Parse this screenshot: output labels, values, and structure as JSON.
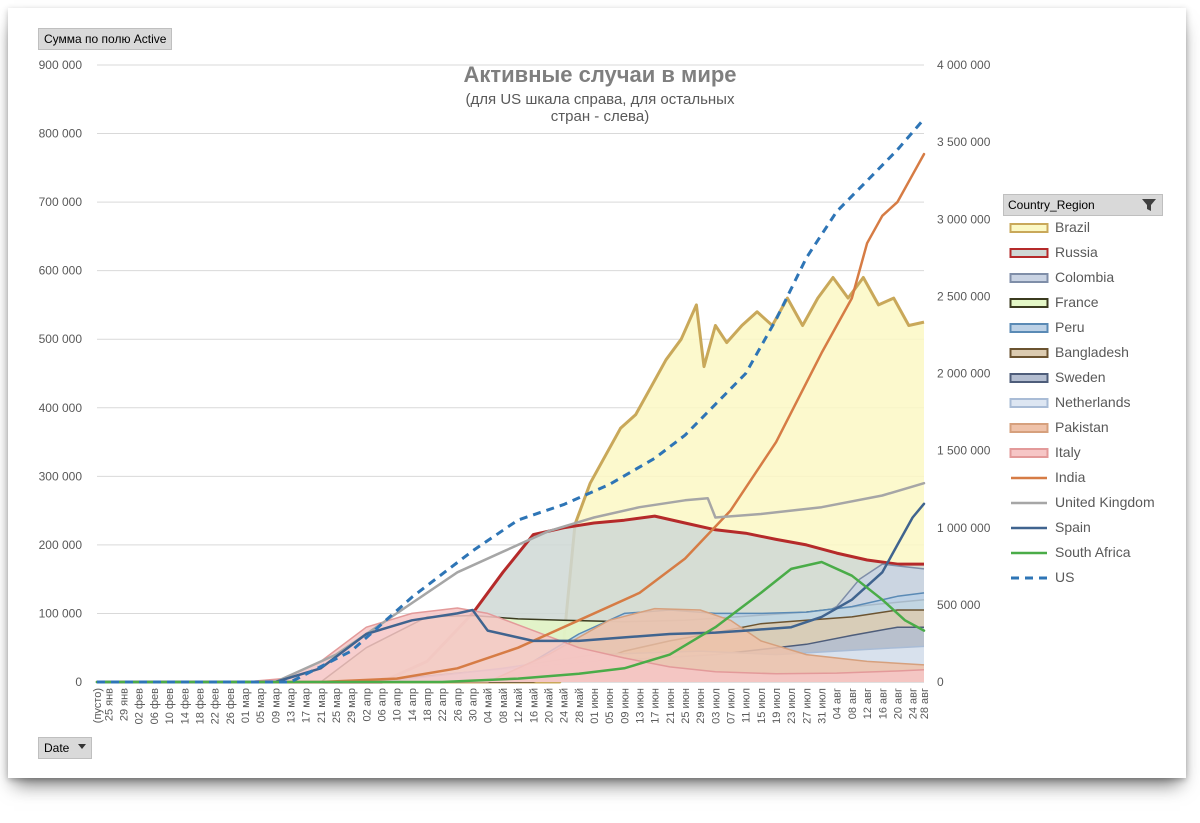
{
  "pivot": {
    "value_field": "Сумма по полю Active",
    "axis_field": "Date",
    "legend_field": "Country_Region"
  },
  "chart_data": {
    "type": "area",
    "title": "Активные случаи в мире",
    "subtitle_lines": [
      "(для US шкала справа, для остальных",
      "стран - слева)"
    ],
    "y_left": {
      "range": [
        0,
        900000
      ],
      "ticks": [
        "0",
        "100 000",
        "200 000",
        "300 000",
        "400 000",
        "500 000",
        "600 000",
        "700 000",
        "800 000",
        "900 000"
      ]
    },
    "y_right": {
      "range": [
        0,
        4000000
      ],
      "ticks": [
        "0",
        "500 000",
        "1 000 000",
        "1 500 000",
        "2 000 000",
        "2 500 000",
        "3 000 000",
        "3 500 000",
        "4 000 000"
      ]
    },
    "x_range": [
      0,
      218
    ],
    "x_tick_labels": [
      "(пусто)",
      "25 янв",
      "29 янв",
      "02 фев",
      "06 фев",
      "10 фев",
      "14 фев",
      "18 фев",
      "22 фев",
      "26 фев",
      "01 мар",
      "05 мар",
      "09 мар",
      "13 мар",
      "17 мар",
      "21 мар",
      "25 мар",
      "29 мар",
      "02 апр",
      "06 апр",
      "10 апр",
      "14 апр",
      "18 апр",
      "22 апр",
      "26 апр",
      "30 апр",
      "04 май",
      "08 май",
      "12 май",
      "16 май",
      "20 май",
      "24 май",
      "28 май",
      "01 июн",
      "05 июн",
      "09 июн",
      "13 июн",
      "17 июн",
      "21 июн",
      "25 июн",
      "29 июн",
      "03 июл",
      "07 июл",
      "11 июл",
      "15 июл",
      "19 июл",
      "23 июл",
      "27 июл",
      "31 июл",
      "04 авг",
      "08 авг",
      "12 авг",
      "16 авг",
      "20 авг",
      "24 авг",
      "28 авг"
    ],
    "x_tick_positions": [
      0,
      3,
      7,
      11,
      15,
      19,
      23,
      27,
      31,
      35,
      39,
      43,
      47,
      51,
      55,
      59,
      63,
      67,
      71,
      75,
      79,
      83,
      87,
      91,
      95,
      99,
      103,
      107,
      111,
      115,
      119,
      123,
      127,
      131,
      135,
      139,
      143,
      147,
      151,
      155,
      159,
      163,
      167,
      171,
      175,
      179,
      183,
      187,
      191,
      195,
      199,
      203,
      207,
      211,
      215,
      218
    ],
    "series": [
      {
        "name": "Brazil",
        "kind": "area",
        "axis": "left",
        "stroke": "#c9a85a",
        "fill": "#fbf8c4",
        "stroke_width": 3,
        "points": [
          [
            0,
            0
          ],
          [
            122,
            0
          ],
          [
            126,
            230000
          ],
          [
            130,
            290000
          ],
          [
            134,
            330000
          ],
          [
            138,
            370000
          ],
          [
            142,
            390000
          ],
          [
            146,
            430000
          ],
          [
            150,
            470000
          ],
          [
            154,
            500000
          ],
          [
            158,
            550000
          ],
          [
            160,
            460000
          ],
          [
            163,
            520000
          ],
          [
            166,
            495000
          ],
          [
            170,
            520000
          ],
          [
            174,
            540000
          ],
          [
            178,
            520000
          ],
          [
            182,
            560000
          ],
          [
            186,
            520000
          ],
          [
            190,
            560000
          ],
          [
            194,
            590000
          ],
          [
            198,
            560000
          ],
          [
            202,
            590000
          ],
          [
            206,
            550000
          ],
          [
            210,
            560000
          ],
          [
            214,
            520000
          ],
          [
            218,
            525000
          ]
        ]
      },
      {
        "name": "Russia",
        "kind": "area",
        "axis": "left",
        "stroke": "#b52a2a",
        "fill": "#cfd8d5",
        "stroke_width": 3,
        "points": [
          [
            0,
            0
          ],
          [
            75,
            0
          ],
          [
            87,
            30000
          ],
          [
            99,
            100000
          ],
          [
            107,
            160000
          ],
          [
            115,
            215000
          ],
          [
            123,
            225000
          ],
          [
            131,
            232000
          ],
          [
            139,
            236000
          ],
          [
            147,
            242000
          ],
          [
            155,
            232000
          ],
          [
            163,
            222000
          ],
          [
            171,
            217000
          ],
          [
            179,
            208000
          ],
          [
            187,
            200000
          ],
          [
            195,
            188000
          ],
          [
            203,
            178000
          ],
          [
            211,
            172000
          ],
          [
            218,
            172000
          ]
        ]
      },
      {
        "name": "Colombia",
        "kind": "area",
        "axis": "left",
        "stroke": "#7f8ea8",
        "fill": "#c9d3e3",
        "stroke_width": 1.5,
        "points": [
          [
            0,
            0
          ],
          [
            111,
            0
          ],
          [
            131,
            15000
          ],
          [
            151,
            30000
          ],
          [
            171,
            50000
          ],
          [
            183,
            75000
          ],
          [
            195,
            110000
          ],
          [
            201,
            150000
          ],
          [
            207,
            172000
          ],
          [
            213,
            168000
          ],
          [
            218,
            165000
          ]
        ]
      },
      {
        "name": "France",
        "kind": "area",
        "axis": "left",
        "stroke": "#3b3b1f",
        "fill": "#e4f7c6",
        "stroke_width": 1.5,
        "points": [
          [
            0,
            0
          ],
          [
            59,
            0
          ],
          [
            71,
            50000
          ],
          [
            87,
            95000
          ],
          [
            99,
            97000
          ],
          [
            111,
            92000
          ],
          [
            123,
            90000
          ],
          [
            139,
            88000
          ],
          [
            155,
            90000
          ],
          [
            171,
            96000
          ],
          [
            187,
            102000
          ],
          [
            203,
            112000
          ],
          [
            218,
            120000
          ]
        ]
      },
      {
        "name": "Peru",
        "kind": "area",
        "axis": "left",
        "stroke": "#5a8ab5",
        "fill": "#bcd1e6",
        "stroke_width": 1.5,
        "points": [
          [
            0,
            0
          ],
          [
            103,
            0
          ],
          [
            115,
            30000
          ],
          [
            127,
            70000
          ],
          [
            139,
            100000
          ],
          [
            151,
            105000
          ],
          [
            163,
            100000
          ],
          [
            175,
            100000
          ],
          [
            187,
            102000
          ],
          [
            199,
            110000
          ],
          [
            211,
            125000
          ],
          [
            218,
            130000
          ]
        ]
      },
      {
        "name": "Bangladesh",
        "kind": "area",
        "axis": "left",
        "stroke": "#6b5330",
        "fill": "#dccbb0",
        "stroke_width": 1.5,
        "points": [
          [
            0,
            0
          ],
          [
            115,
            0
          ],
          [
            127,
            20000
          ],
          [
            139,
            45000
          ],
          [
            151,
            60000
          ],
          [
            163,
            72000
          ],
          [
            175,
            85000
          ],
          [
            187,
            90000
          ],
          [
            199,
            95000
          ],
          [
            211,
            105000
          ],
          [
            218,
            105000
          ]
        ]
      },
      {
        "name": "Sweden",
        "kind": "area",
        "axis": "left",
        "stroke": "#4e5d7a",
        "fill": "#b3bdd0",
        "stroke_width": 1.5,
        "points": [
          [
            0,
            0
          ],
          [
            71,
            0
          ],
          [
            99,
            15000
          ],
          [
            131,
            30000
          ],
          [
            163,
            40000
          ],
          [
            187,
            55000
          ],
          [
            199,
            68000
          ],
          [
            211,
            80000
          ],
          [
            218,
            80000
          ]
        ]
      },
      {
        "name": "Netherlands",
        "kind": "area",
        "axis": "left",
        "stroke": "#a9bcd6",
        "fill": "#dde6f2",
        "stroke_width": 1.5,
        "points": [
          [
            0,
            0
          ],
          [
            75,
            0
          ],
          [
            107,
            20000
          ],
          [
            131,
            40000
          ],
          [
            159,
            45000
          ],
          [
            179,
            40000
          ],
          [
            195,
            45000
          ],
          [
            211,
            50000
          ],
          [
            218,
            52000
          ]
        ]
      },
      {
        "name": "Pakistan",
        "kind": "area",
        "axis": "left",
        "stroke": "#d6a07d",
        "fill": "#efc2a9",
        "stroke_width": 1.5,
        "points": [
          [
            0,
            0
          ],
          [
            103,
            0
          ],
          [
            119,
            40000
          ],
          [
            135,
            90000
          ],
          [
            147,
            107000
          ],
          [
            159,
            105000
          ],
          [
            167,
            90000
          ],
          [
            175,
            60000
          ],
          [
            187,
            40000
          ],
          [
            203,
            30000
          ],
          [
            218,
            25000
          ]
        ]
      },
      {
        "name": "Italy",
        "kind": "area",
        "axis": "left",
        "stroke": "#e39a9a",
        "fill": "#f6c6c6",
        "stroke_width": 1.5,
        "points": [
          [
            0,
            0
          ],
          [
            39,
            0
          ],
          [
            49,
            5000
          ],
          [
            59,
            30000
          ],
          [
            71,
            80000
          ],
          [
            83,
            100000
          ],
          [
            95,
            108000
          ],
          [
            103,
            100000
          ],
          [
            115,
            75000
          ],
          [
            127,
            50000
          ],
          [
            139,
            35000
          ],
          [
            151,
            22000
          ],
          [
            163,
            15000
          ],
          [
            179,
            12000
          ],
          [
            195,
            13000
          ],
          [
            211,
            16000
          ],
          [
            218,
            18000
          ]
        ]
      },
      {
        "name": "India",
        "kind": "line",
        "axis": "left",
        "stroke": "#d67c45",
        "stroke_width": 2.5,
        "points": [
          [
            0,
            0
          ],
          [
            59,
            0
          ],
          [
            79,
            5000
          ],
          [
            95,
            20000
          ],
          [
            111,
            50000
          ],
          [
            127,
            90000
          ],
          [
            143,
            130000
          ],
          [
            155,
            180000
          ],
          [
            167,
            250000
          ],
          [
            179,
            350000
          ],
          [
            191,
            480000
          ],
          [
            199,
            560000
          ],
          [
            203,
            640000
          ],
          [
            207,
            680000
          ],
          [
            211,
            700000
          ],
          [
            215,
            740000
          ],
          [
            218,
            770000
          ]
        ]
      },
      {
        "name": "United Kingdom",
        "kind": "line",
        "axis": "left",
        "stroke": "#a6a6a6",
        "stroke_width": 2.5,
        "points": [
          [
            0,
            0
          ],
          [
            47,
            0
          ],
          [
            63,
            40000
          ],
          [
            79,
            100000
          ],
          [
            95,
            160000
          ],
          [
            107,
            190000
          ],
          [
            119,
            220000
          ],
          [
            131,
            240000
          ],
          [
            143,
            255000
          ],
          [
            155,
            265000
          ],
          [
            161,
            268000
          ],
          [
            163,
            240000
          ],
          [
            175,
            245000
          ],
          [
            191,
            255000
          ],
          [
            207,
            272000
          ],
          [
            218,
            290000
          ]
        ]
      },
      {
        "name": "Spain",
        "kind": "line",
        "axis": "left",
        "stroke": "#40648f",
        "stroke_width": 2.5,
        "points": [
          [
            0,
            0
          ],
          [
            47,
            0
          ],
          [
            59,
            20000
          ],
          [
            71,
            70000
          ],
          [
            83,
            90000
          ],
          [
            95,
            100000
          ],
          [
            99,
            105000
          ],
          [
            103,
            75000
          ],
          [
            115,
            60000
          ],
          [
            127,
            60000
          ],
          [
            139,
            65000
          ],
          [
            151,
            70000
          ],
          [
            163,
            72000
          ],
          [
            171,
            75000
          ],
          [
            183,
            80000
          ],
          [
            191,
            95000
          ],
          [
            199,
            120000
          ],
          [
            207,
            160000
          ],
          [
            211,
            200000
          ],
          [
            215,
            240000
          ],
          [
            218,
            260000
          ]
        ]
      },
      {
        "name": "South Africa",
        "kind": "line",
        "axis": "left",
        "stroke": "#4aac48",
        "stroke_width": 2.5,
        "points": [
          [
            0,
            0
          ],
          [
            91,
            0
          ],
          [
            111,
            5000
          ],
          [
            127,
            12000
          ],
          [
            139,
            20000
          ],
          [
            151,
            40000
          ],
          [
            163,
            80000
          ],
          [
            175,
            130000
          ],
          [
            183,
            165000
          ],
          [
            191,
            175000
          ],
          [
            199,
            155000
          ],
          [
            207,
            120000
          ],
          [
            213,
            90000
          ],
          [
            218,
            75000
          ]
        ]
      },
      {
        "name": "US",
        "kind": "dashed",
        "axis": "right",
        "stroke": "#2e75b6",
        "stroke_width": 3,
        "points": [
          [
            0,
            0
          ],
          [
            51,
            0
          ],
          [
            67,
            200000
          ],
          [
            83,
            550000
          ],
          [
            99,
            850000
          ],
          [
            111,
            1050000
          ],
          [
            123,
            1150000
          ],
          [
            135,
            1280000
          ],
          [
            147,
            1450000
          ],
          [
            155,
            1600000
          ],
          [
            163,
            1800000
          ],
          [
            171,
            2000000
          ],
          [
            179,
            2350000
          ],
          [
            187,
            2750000
          ],
          [
            195,
            3050000
          ],
          [
            203,
            3250000
          ],
          [
            211,
            3450000
          ],
          [
            218,
            3650000
          ]
        ]
      }
    ]
  }
}
